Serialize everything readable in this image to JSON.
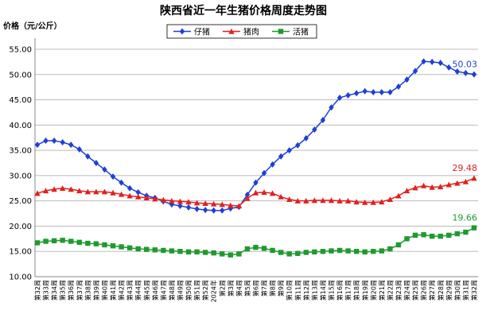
{
  "chart_data": {
    "type": "line",
    "title": "陕西省近一年生猪价格周度走势图",
    "y_label": "价格（元/公斤）",
    "categories": [
      "第32周",
      "第33周",
      "第34周",
      "第35周",
      "第36周",
      "第37周",
      "第38周",
      "第39周",
      "第40周",
      "第41周",
      "第42周",
      "第43周",
      "第44周",
      "第45周",
      "第46周",
      "第47周",
      "第48周",
      "第49周",
      "第50周",
      "第51周",
      "第52周",
      "2024年",
      "第2周",
      "第3周",
      "第4周",
      "第5周",
      "第6周",
      "第7周",
      "第8周",
      "第9周",
      "第10周",
      "第11周",
      "第12周",
      "第13周",
      "第14周",
      "第15周",
      "第16周",
      "第17周",
      "第18周",
      "第19周",
      "第20周",
      "第21周",
      "第22周",
      "第23周",
      "第24周",
      "第25周",
      "第26周",
      "第27周",
      "第28周",
      "第29周",
      "第30周",
      "第31周",
      "第32周"
    ],
    "series": [
      {
        "name": "仔猪",
        "color": "#1f3fd6",
        "marker": "diamond",
        "values": [
          36.1,
          36.9,
          36.9,
          36.6,
          36.1,
          35.2,
          33.8,
          32.5,
          31.2,
          29.8,
          28.6,
          27.5,
          26.7,
          26.0,
          25.6,
          24.9,
          24.3,
          24.0,
          23.7,
          23.4,
          23.2,
          23.1,
          23.1,
          23.5,
          23.8,
          26.2,
          28.6,
          30.5,
          32.2,
          33.8,
          35.0,
          36.0,
          37.4,
          39.1,
          41.0,
          43.5,
          45.4,
          45.9,
          46.3,
          46.7,
          46.5,
          46.5,
          46.5,
          47.6,
          49.0,
          50.7,
          52.6,
          52.5,
          52.3,
          51.4,
          50.6,
          50.3,
          50.03
        ]
      },
      {
        "name": "猪肉",
        "color": "#e0201e",
        "marker": "triangle",
        "values": [
          26.5,
          27.0,
          27.3,
          27.5,
          27.3,
          27.0,
          26.8,
          26.8,
          26.8,
          26.6,
          26.3,
          26.0,
          25.8,
          25.6,
          25.4,
          25.2,
          25.0,
          24.9,
          24.8,
          24.6,
          24.5,
          24.4,
          24.3,
          24.1,
          24.0,
          25.5,
          26.6,
          26.7,
          26.5,
          25.8,
          25.3,
          25.0,
          25.0,
          25.1,
          25.1,
          25.1,
          25.0,
          25.0,
          24.8,
          24.7,
          24.7,
          24.8,
          25.3,
          26.0,
          27.0,
          27.6,
          28.0,
          27.7,
          27.8,
          28.2,
          28.5,
          28.8,
          29.48
        ]
      },
      {
        "name": "活猪",
        "color": "#1e9a2e",
        "marker": "square",
        "values": [
          16.7,
          17.0,
          17.1,
          17.2,
          17.0,
          16.8,
          16.6,
          16.5,
          16.3,
          16.1,
          15.9,
          15.7,
          15.5,
          15.4,
          15.3,
          15.2,
          15.1,
          15.0,
          14.9,
          14.9,
          14.8,
          14.7,
          14.5,
          14.3,
          14.5,
          15.5,
          15.8,
          15.6,
          15.2,
          14.8,
          14.5,
          14.6,
          14.8,
          14.9,
          15.0,
          15.1,
          15.2,
          15.1,
          15.0,
          14.9,
          15.0,
          15.1,
          15.5,
          16.3,
          17.5,
          18.2,
          18.3,
          18.0,
          18.0,
          18.2,
          18.5,
          18.8,
          19.66
        ]
      }
    ],
    "ylim": [
      10,
      55
    ],
    "yticks": [
      {
        "value": 10,
        "label": "10.00"
      },
      {
        "value": 15,
        "label": "15.00"
      },
      {
        "value": 20,
        "label": "20.00"
      },
      {
        "value": 25,
        "label": "25.00"
      },
      {
        "value": 30,
        "label": "30.00"
      },
      {
        "value": 35,
        "label": "35.00"
      },
      {
        "value": 40,
        "label": "40.00"
      },
      {
        "value": 45,
        "label": "45.00"
      },
      {
        "value": 50,
        "label": "50.00"
      },
      {
        "value": 55,
        "label": "55.00"
      }
    ],
    "grid": true
  }
}
